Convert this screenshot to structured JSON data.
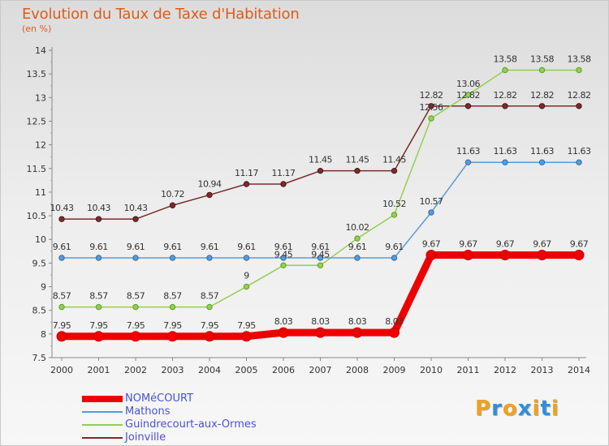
{
  "title": "Evolution du Taux de Taxe d'Habitation",
  "unit": "(en %)",
  "logo": {
    "letters": [
      "P",
      "r",
      "o",
      "x",
      "i",
      "t",
      "i"
    ],
    "colors": [
      "#f0a020",
      "#2f8fd8",
      "#f0a020",
      "#2f8fd8",
      "#f0a020",
      "#2f8fd8",
      "#f0a020"
    ]
  },
  "chart_data": {
    "type": "line",
    "x": [
      "2000",
      "2001",
      "2002",
      "2003",
      "2004",
      "2005",
      "2006",
      "2007",
      "2008",
      "2009",
      "2010",
      "2011",
      "2012",
      "2013",
      "2014"
    ],
    "ylim": [
      7.5,
      14
    ],
    "yticks": [
      "7.5",
      "8",
      "8.5",
      "9",
      "9.5",
      "10",
      "10.5",
      "11",
      "11.5",
      "12",
      "12.5",
      "13",
      "13.5",
      "14"
    ],
    "grid": false,
    "legend_position": "bottom-left",
    "series": [
      {
        "name": "NOMéCOURT",
        "color": "#ee0000",
        "width": 9,
        "values": [
          7.95,
          7.95,
          7.95,
          7.95,
          7.95,
          7.95,
          8.03,
          8.03,
          8.03,
          8.03,
          9.67,
          9.67,
          9.67,
          9.67,
          9.67
        ],
        "labels": [
          "7.95",
          "7.95",
          "7.95",
          "7.95",
          "7.95",
          "7.95",
          "8.03",
          "8.03",
          "8.03",
          "8.03",
          "9.67",
          "9.67",
          "9.67",
          "9.67",
          "9.67"
        ]
      },
      {
        "name": "Mathons",
        "color": "#5a9bd5",
        "width": 1.5,
        "values": [
          9.61,
          9.61,
          9.61,
          9.61,
          9.61,
          9.61,
          9.61,
          9.61,
          9.61,
          9.61,
          10.57,
          11.63,
          11.63,
          11.63,
          11.63
        ],
        "labels": [
          "9.61",
          "9.61",
          "9.61",
          "9.61",
          "9.61",
          "9.61",
          "9.61",
          "9.61",
          "9.61",
          "9.61",
          "10.57",
          "11.63",
          "11.63",
          "11.63",
          "11.63"
        ]
      },
      {
        "name": "Guindrecourt-aux-Ormes",
        "color": "#92d050",
        "width": 1.5,
        "values": [
          8.57,
          8.57,
          8.57,
          8.57,
          8.57,
          9,
          9.45,
          9.45,
          10.02,
          10.52,
          12.56,
          13.06,
          13.58,
          13.58,
          13.58
        ],
        "labels": [
          "8.57",
          "8.57",
          "8.57",
          "8.57",
          "8.57",
          "9",
          "9.45",
          "9.45",
          "10.02",
          "10.52",
          "12.56",
          "13.06",
          "13.58",
          "13.58",
          "13.58"
        ]
      },
      {
        "name": "Joinville",
        "color": "#7b2c2c",
        "width": 1.5,
        "values": [
          10.43,
          10.43,
          10.43,
          10.72,
          10.94,
          11.17,
          11.17,
          11.45,
          11.45,
          11.45,
          12.82,
          12.82,
          12.82,
          12.82,
          12.82
        ],
        "labels": [
          "10.43",
          "10.43",
          "10.43",
          "10.72",
          "10.94",
          "11.17",
          "11.17",
          "11.45",
          "11.45",
          "11.45",
          "12.82",
          "12.82",
          "12.82",
          "12.82",
          "12.82"
        ]
      }
    ]
  }
}
